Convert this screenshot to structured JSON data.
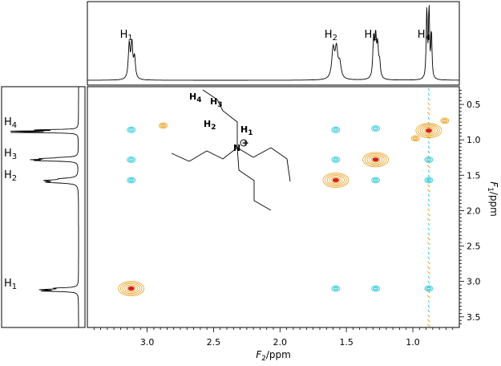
{
  "chart_data": {
    "type": "2D NMR COSY contour plot",
    "f2_axis": {
      "label": "F2",
      "unit_label": "/ppm",
      "range": [
        3.45,
        0.65
      ],
      "ticks": [
        "3.0",
        "2.5",
        "2.0",
        "1.5",
        "1.0"
      ]
    },
    "f1_axis": {
      "label": "F1",
      "unit_label": "/ppm",
      "range": [
        0.25,
        3.65
      ],
      "ticks": [
        "0.5",
        "1.0",
        "1.5",
        "2.0",
        "2.5",
        "3.0",
        "3.5"
      ]
    },
    "peaks": [
      {
        "label": "H",
        "sub": "1",
        "ppm": 3.12
      },
      {
        "label": "H",
        "sub": "2",
        "ppm": 1.58
      },
      {
        "label": "H",
        "sub": "3",
        "ppm": 1.28
      },
      {
        "label": "H",
        "sub": "4",
        "ppm": 0.88
      }
    ],
    "diagonal_peaks": [
      {
        "f2": 3.12,
        "f1": 3.1,
        "color": "#e8a020"
      },
      {
        "f2": 1.58,
        "f1": 1.57,
        "color": "#e8a020"
      },
      {
        "f2": 1.28,
        "f1": 1.28,
        "color": "#e8a020"
      },
      {
        "f2": 0.88,
        "f1": 0.87,
        "color": "#e8a020"
      }
    ],
    "cross_peaks": [
      {
        "f2": 3.12,
        "f1": 1.57,
        "color": "#30c8d8"
      },
      {
        "f2": 3.12,
        "f1": 1.28,
        "color": "#30c8d8"
      },
      {
        "f2": 3.12,
        "f1": 0.86,
        "color": "#30c8d8"
      },
      {
        "f2": 1.58,
        "f1": 3.1,
        "color": "#30c8d8"
      },
      {
        "f2": 1.58,
        "f1": 1.28,
        "color": "#30c8d8"
      },
      {
        "f2": 1.58,
        "f1": 0.86,
        "color": "#30c8d8"
      },
      {
        "f2": 1.28,
        "f1": 3.1,
        "color": "#30c8d8"
      },
      {
        "f2": 1.28,
        "f1": 1.57,
        "color": "#30c8d8"
      },
      {
        "f2": 1.28,
        "f1": 0.84,
        "color": "#30c8d8"
      },
      {
        "f2": 0.88,
        "f1": 1.28,
        "color": "#30c8d8"
      },
      {
        "f2": 0.88,
        "f1": 1.57,
        "color": "#30c8d8"
      },
      {
        "f2": 0.88,
        "f1": 3.1,
        "color": "#30c8d8"
      }
    ],
    "artifact_peaks": [
      {
        "f2": 2.88,
        "f1": 0.8,
        "color": "#e8a020"
      },
      {
        "f2": 0.98,
        "f1": 0.98,
        "color": "#e8a020"
      },
      {
        "f2": 0.76,
        "f1": 0.73,
        "color": "#e8a020"
      }
    ],
    "t1_noise_f2": 0.88,
    "grid": false
  },
  "molecule": {
    "labels": [
      {
        "text": "H",
        "sub": "4"
      },
      {
        "text": "H",
        "sub": "3"
      },
      {
        "text": "H",
        "sub": "2"
      },
      {
        "text": "H",
        "sub": "1"
      }
    ],
    "atom": "N",
    "charge": "+"
  },
  "colors": {
    "positive": "#e8a020",
    "positive_core": "#d02020",
    "negative": "#30c8d8",
    "axis": "#000000"
  }
}
